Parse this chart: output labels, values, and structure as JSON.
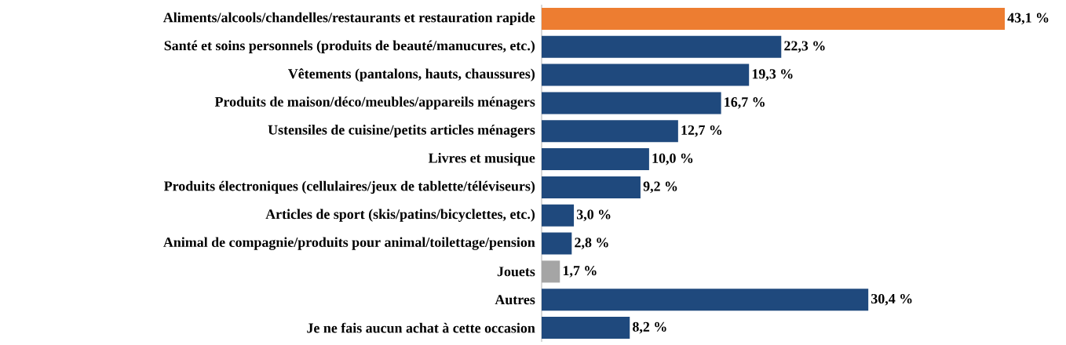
{
  "chart_data": {
    "type": "bar",
    "orientation": "horizontal",
    "categories": [
      "Aliments/alcools/chandelles/restaurants et restauration rapide",
      "Santé et soins personnels (produits de beauté/manucures, etc.)",
      "Vêtements (pantalons, hauts, chaussures)",
      "Produits de maison/déco/meubles/appareils ménagers",
      "Ustensiles de cuisine/petits articles ménagers",
      "Livres et musique",
      "Produits électroniques (cellulaires/jeux de tablette/téléviseurs)",
      "Articles de sport (skis/patins/bicyclettes, etc.)",
      "Animal de compagnie/produits pour animal/toilettage/pension",
      "Jouets",
      "Autres",
      "Je ne fais aucun achat à cette occasion"
    ],
    "values": [
      43.1,
      22.3,
      19.3,
      16.7,
      12.7,
      10.0,
      9.2,
      3.0,
      2.8,
      1.7,
      30.4,
      8.2
    ],
    "colors": [
      "#ed7d31",
      "#1f497d",
      "#1f497d",
      "#1f497d",
      "#1f497d",
      "#1f497d",
      "#1f497d",
      "#1f497d",
      "#1f497d",
      "#a5a5a5",
      "#1f497d",
      "#1f497d"
    ],
    "value_labels": [
      "43,1 %",
      "22,3 %",
      "19,3 %",
      "16,7 %",
      "12,7 %",
      "10,0 %",
      "9,2 %",
      "3,0 %",
      "2,8 %",
      "1,7 %",
      "30,4 %",
      "8,2 %"
    ]
  }
}
